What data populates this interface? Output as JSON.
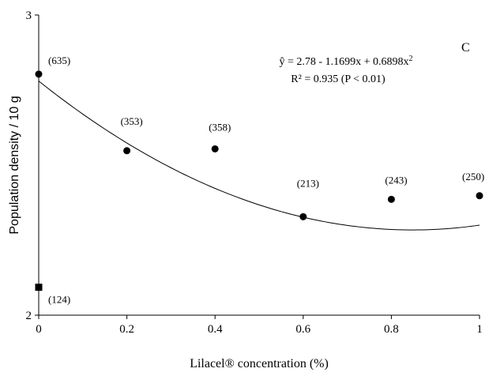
{
  "chart_data": {
    "type": "scatter",
    "panel_letter": "C",
    "xlabel": "Lilacel® concentration (%)",
    "ylabel": "Population density / 10 g",
    "xlim": [
      0,
      1
    ],
    "ylim": [
      2,
      3
    ],
    "x_ticks": [
      "0",
      "0.2",
      "0.4",
      "0.6",
      "0.8",
      "1"
    ],
    "y_ticks": [
      "2",
      "3"
    ],
    "grid": false,
    "series": [
      {
        "marker": "circle",
        "points": [
          {
            "x": 0.0,
            "y": 2.803,
            "label": "(635)"
          },
          {
            "x": 0.2,
            "y": 2.548,
            "label": "(353)"
          },
          {
            "x": 0.4,
            "y": 2.554,
            "label": "(358)"
          },
          {
            "x": 0.6,
            "y": 2.328,
            "label": "(213)"
          },
          {
            "x": 0.8,
            "y": 2.386,
            "label": "(243)"
          },
          {
            "x": 1.0,
            "y": 2.398,
            "label": "(250)"
          }
        ]
      },
      {
        "marker": "square",
        "points": [
          {
            "x": 0.0,
            "y": 2.093,
            "label": "(124)"
          }
        ]
      }
    ],
    "trendline": {
      "type": "polynomial",
      "coefficients": [
        2.78,
        -1.1699,
        0.6898
      ],
      "equation": "ŷ = 2.78 - 1.1699x + 0.6898x",
      "equation_superscript": "2",
      "r2_text": "R² = 0.935 (P < 0.01)"
    }
  }
}
